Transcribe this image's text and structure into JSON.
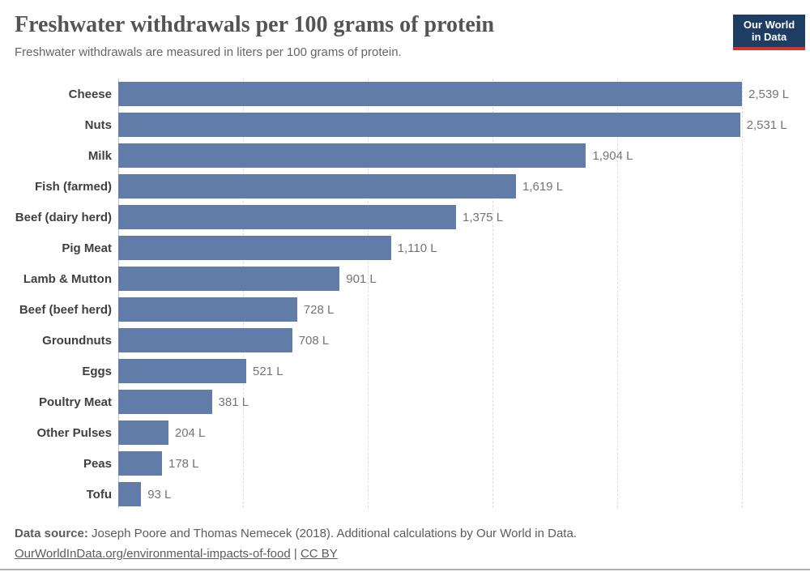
{
  "header": {
    "title": "Freshwater withdrawals per 100 grams of protein",
    "subtitle": "Freshwater withdrawals are measured in liters per 100 grams of protein.",
    "logo": {
      "line1": "Our World",
      "line2": "in Data"
    }
  },
  "chart_data": {
    "type": "bar",
    "orientation": "horizontal",
    "title": "Freshwater withdrawals per 100 grams of protein",
    "xlabel": "",
    "ylabel": "",
    "unit": "liters per 100 grams of protein",
    "xlim": [
      0,
      2539
    ],
    "grid": "vertical dashed gridlines, 5 equal divisions, no x-axis tick labels",
    "legend": "none",
    "categories": [
      "Cheese",
      "Nuts",
      "Milk",
      "Fish (farmed)",
      "Beef (dairy herd)",
      "Pig Meat",
      "Lamb & Mutton",
      "Beef (beef herd)",
      "Groundnuts",
      "Eggs",
      "Poultry Meat",
      "Other Pulses",
      "Peas",
      "Tofu"
    ],
    "values": [
      2539,
      2531,
      1904,
      1619,
      1375,
      1110,
      901,
      728,
      708,
      521,
      381,
      204,
      178,
      93
    ],
    "value_labels": [
      "2,539 L",
      "2,531 L",
      "1,904 L",
      "1,619 L",
      "1,375 L",
      "1,110 L",
      "901 L",
      "728 L",
      "708 L",
      "521 L",
      "381 L",
      "204 L",
      "178 L",
      "93 L"
    ]
  },
  "footer": {
    "source_label": "Data source:",
    "source_text": " Joseph Poore and Thomas Nemecek (2018). Additional calculations by Our World in Data.",
    "link": "OurWorldInData.org/environmental-impacts-of-food",
    "separator": " | ",
    "license": "CC BY"
  },
  "colors": {
    "bar": "#627ca9",
    "logo_bg": "#1d3d63",
    "logo_accent": "#d0342c",
    "title_text": "#545454",
    "value_text": "#747474"
  }
}
